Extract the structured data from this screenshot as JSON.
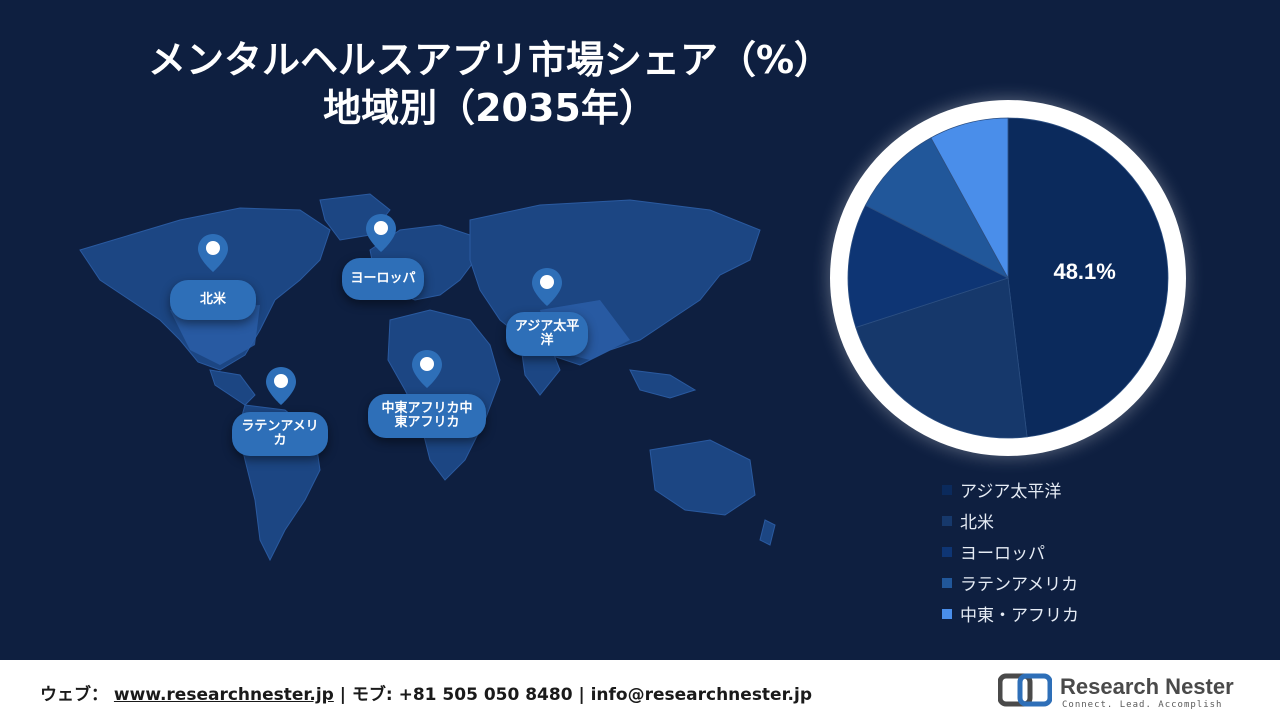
{
  "title": {
    "line1": "メンタルヘルスアプリ市場シェア（%）",
    "line2": "地域別（2035年）"
  },
  "map": {
    "pins": [
      {
        "label": "北米"
      },
      {
        "label": "ヨーロッパ"
      },
      {
        "label": "アジア太平洋"
      },
      {
        "label": "ラテンアメリカ"
      },
      {
        "label": "中東アフリカ中東アフリカ"
      }
    ],
    "pin_color": "#2e6fb8",
    "land_color": "#1f4a8a"
  },
  "chart_data": {
    "type": "pie",
    "title": "",
    "categories": [
      "アジア太平洋",
      "北米",
      "ヨーロッパ",
      "ラテンアメリカ",
      "中東・アフリカ"
    ],
    "values": [
      48.1,
      21.9,
      12.5,
      9.5,
      8.0
    ],
    "colors": [
      "#0b2a5c",
      "#16386b",
      "#0e3574",
      "#21579a",
      "#4a8eea"
    ],
    "data_labels": [
      "48.1%",
      "",
      "",
      "",
      ""
    ],
    "legend_position": "bottom-right"
  },
  "footer": {
    "web_prefix": "ウェブ：",
    "web_url": "www.researchnester.jp",
    "tel": "| モブ: +81 505 050 8480 | info@researchnester.jp",
    "logo_name": "Research Nester",
    "logo_tagline": "Connect. Lead. Accomplish"
  }
}
